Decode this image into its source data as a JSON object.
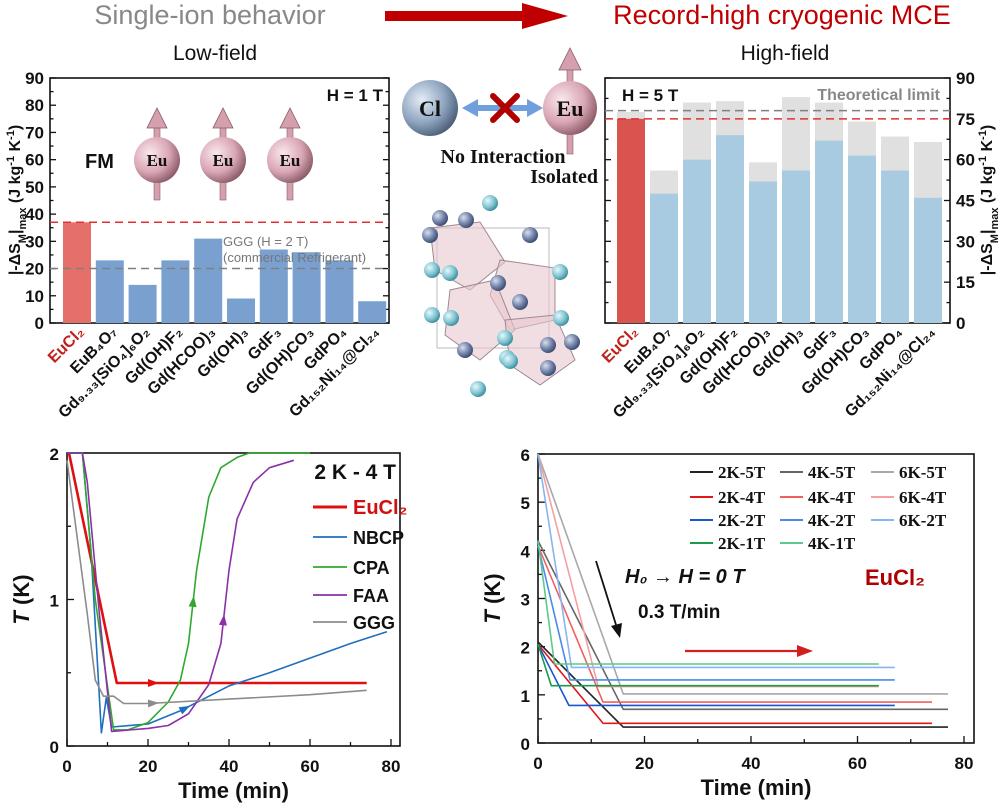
{
  "header": {
    "left_title": "Single-ion behavior",
    "right_title": "Record-high cryogenic MCE",
    "low_field": "Low-field",
    "high_field": "High-field"
  },
  "illustration": {
    "cl_label": "Cl",
    "eu_label": "Eu",
    "no_interaction": "No Interaction",
    "isolated": "Isolated",
    "fm_label": "FM"
  },
  "colors": {
    "eucl2_bar": "#e5706a",
    "eucl2_bar_high": "#d9534f",
    "other_bar_low": "#7aa0d0",
    "other_bar_high": "#a8cbe2",
    "limit_bar": "#e0e0e0",
    "accent_red": "#c00000",
    "gray_text": "#777777"
  },
  "y_title": {
    "pre": "|-ΔS",
    "sub1": "M",
    "mid": "|",
    "sub2": "max",
    "post": " (J kg",
    "sup1": "-1",
    "mid2": " K",
    "sup2": "-1",
    "end": ")"
  },
  "chart_data": [
    {
      "type": "bar",
      "title": "Low-field",
      "annotation": "H = 1 T",
      "categories": [
        "EuCl₂",
        "EuB₄O₇",
        "Gd₉.₃₃[SiO₄]₆O₂",
        "Gd(OH)F₂",
        "Gd(HCOO)₃",
        "Gd(OH)₃",
        "GdF₃",
        "Gd(OH)CO₃",
        "GdPO₄",
        "Gd₁₅₂Ni₁₄@Cl₂₄"
      ],
      "values": [
        37,
        23,
        14,
        23,
        31,
        9,
        27,
        26,
        23,
        8
      ],
      "ylim": [
        0,
        90
      ],
      "yticks": [
        0,
        10,
        20,
        30,
        40,
        50,
        60,
        70,
        80,
        90
      ],
      "reference_lines": [
        {
          "value": 37,
          "color": "#e03030"
        },
        {
          "value": 20,
          "color": "#808080",
          "label1": "GGG (H = 2 T)",
          "label2": "(commercial Refrigerant)"
        }
      ]
    },
    {
      "type": "bar",
      "title": "High-field",
      "annotation": "H = 5 T",
      "categories": [
        "EuCl₂",
        "EuB₄O₇",
        "Gd₉.₃₃[SiO₄]₆O₂",
        "Gd(OH)F₂",
        "Gd(HCOO)₃",
        "Gd(OH)₃",
        "GdF₃",
        "Gd(OH)CO₃",
        "GdPO₄",
        "Gd₁₅₂Ni₁₄@Cl₂₄"
      ],
      "series": [
        {
          "values": [
            75,
            47.5,
            60,
            69,
            52,
            56,
            67,
            61.5,
            56,
            46
          ]
        },
        {
          "name": "Theoretical limit",
          "values": [
            77.5,
            56,
            81,
            81.5,
            59,
            83,
            81,
            74,
            68.5,
            66.5
          ]
        }
      ],
      "ylim": [
        0,
        90
      ],
      "yticks": [
        0,
        15,
        30,
        45,
        60,
        75,
        90
      ],
      "yaxis_side": "right",
      "reference_lines": [
        {
          "value": 75,
          "color": "#e03030"
        },
        {
          "value": 78,
          "color": "#808080",
          "label1": "Theoretical limit"
        }
      ]
    },
    {
      "type": "line",
      "annotation": "2 K - 4 T",
      "xlabel": "Time (min)",
      "ylabel": "T (K)",
      "xlim": [
        0,
        80
      ],
      "ylim": [
        0,
        2
      ],
      "xticks": [
        0,
        20,
        40,
        60,
        80
      ],
      "yticks": [
        0,
        1,
        2
      ],
      "legend": "right",
      "series": [
        {
          "name": "EuCl₂",
          "color": "#e01010",
          "points": [
            [
              0.5,
              2
            ],
            [
              12.3,
              0.43
            ],
            [
              20,
              0.43
            ],
            [
              40,
              0.43
            ],
            [
              60,
              0.43
            ],
            [
              74,
              0.43
            ]
          ],
          "arrow_at": 20
        },
        {
          "name": "NBCP",
          "color": "#1f6fbf",
          "points": [
            [
              0,
              2
            ],
            [
              3.8,
              2
            ],
            [
              6,
              1.3
            ],
            [
              8.5,
              0.09
            ],
            [
              9.7,
              0.33
            ],
            [
              11,
              0.13
            ],
            [
              20,
              0.15
            ],
            [
              28,
              0.24
            ],
            [
              40,
              0.41
            ],
            [
              50,
              0.5
            ],
            [
              60,
              0.6
            ],
            [
              70,
              0.7
            ],
            [
              79,
              0.78
            ]
          ],
          "arrow_at": 28
        },
        {
          "name": "CPA",
          "color": "#30a830",
          "points": [
            [
              0,
              2
            ],
            [
              3.8,
              2
            ],
            [
              7,
              1
            ],
            [
              11.5,
              0.11
            ],
            [
              15,
              0.11
            ],
            [
              20,
              0.16
            ],
            [
              25,
              0.3
            ],
            [
              28,
              0.45
            ],
            [
              30,
              0.7
            ],
            [
              32,
              1.2
            ],
            [
              35,
              1.7
            ],
            [
              38,
              1.9
            ],
            [
              42,
              1.97
            ],
            [
              45,
              2
            ],
            [
              60,
              2
            ]
          ],
          "arrow_at": 31
        },
        {
          "name": "FAA",
          "color": "#8a30a8",
          "points": [
            [
              0,
              2
            ],
            [
              3.8,
              2
            ],
            [
              5,
              1.8
            ],
            [
              8,
              0.9
            ],
            [
              11,
              0.1
            ],
            [
              20,
              0.12
            ],
            [
              25,
              0.14
            ],
            [
              30,
              0.22
            ],
            [
              35,
              0.42
            ],
            [
              38,
              0.7
            ],
            [
              40,
              1.2
            ],
            [
              42,
              1.55
            ],
            [
              46,
              1.8
            ],
            [
              50,
              1.9
            ],
            [
              56,
              1.95
            ]
          ],
          "arrow_at": 38.5
        },
        {
          "name": "GGG",
          "color": "#8c8c8c",
          "points": [
            [
              0,
              1.95
            ],
            [
              5,
              0.9
            ],
            [
              7,
              0.45
            ],
            [
              9,
              0.34
            ],
            [
              11.5,
              0.34
            ],
            [
              14,
              0.29
            ],
            [
              20,
              0.29
            ],
            [
              40,
              0.32
            ],
            [
              60,
              0.35
            ],
            [
              74,
              0.38
            ]
          ],
          "arrow_at": 20
        }
      ]
    },
    {
      "type": "line",
      "annotation1": "H₀ → H = 0 T",
      "annotation2": "0.3 T/min",
      "annotation3": "EuCl₂",
      "xlabel": "Time (min)",
      "ylabel": "T (K)",
      "xlim": [
        0,
        80
      ],
      "ylim": [
        0,
        6
      ],
      "xticks": [
        0,
        20,
        40,
        60,
        80
      ],
      "yticks": [
        0,
        1,
        2,
        3,
        4,
        5,
        6
      ],
      "legend": "top-right",
      "series": [
        {
          "name": "2K-5T",
          "color": "#222222",
          "points": [
            [
              0,
              2.1
            ],
            [
              16,
              0.33
            ],
            [
              77,
              0.33
            ]
          ]
        },
        {
          "name": "4K-5T",
          "color": "#666666",
          "points": [
            [
              0,
              4.2
            ],
            [
              16,
              0.7
            ],
            [
              77,
              0.7
            ]
          ]
        },
        {
          "name": "6K-5T",
          "color": "#a8a8a8",
          "points": [
            [
              0,
              6
            ],
            [
              16,
              1.02
            ],
            [
              77,
              1.02
            ]
          ]
        },
        {
          "name": "2K-4T",
          "color": "#e01818",
          "points": [
            [
              0,
              2.05
            ],
            [
              12.2,
              0.41
            ],
            [
              74,
              0.41
            ]
          ]
        },
        {
          "name": "4K-4T",
          "color": "#f06060",
          "points": [
            [
              0,
              4.1
            ],
            [
              12.2,
              0.85
            ],
            [
              74,
              0.85
            ]
          ]
        },
        {
          "name": "6K-4T",
          "color": "#f4a0a0",
          "points": [
            [
              0,
              6
            ],
            [
              11.3,
              1.17
            ],
            [
              64,
              1.17
            ]
          ]
        },
        {
          "name": "2K-2T",
          "color": "#1a55d0",
          "points": [
            [
              0,
              2.05
            ],
            [
              5.8,
              0.78
            ],
            [
              67,
              0.78
            ]
          ]
        },
        {
          "name": "4K-2T",
          "color": "#4a8be8",
          "points": [
            [
              0,
              4.1
            ],
            [
              6,
              1.31
            ],
            [
              67,
              1.31
            ]
          ]
        },
        {
          "name": "6K-2T",
          "color": "#86b5f0",
          "points": [
            [
              0,
              6
            ],
            [
              6.3,
              1.57
            ],
            [
              67,
              1.57
            ]
          ]
        },
        {
          "name": "2K-1T",
          "color": "#1a9a4a",
          "points": [
            [
              0,
              2.05
            ],
            [
              2.5,
              1.19
            ],
            [
              64,
              1.19
            ]
          ]
        },
        {
          "name": "4K-1T",
          "color": "#5cc98a",
          "points": [
            [
              0,
              4.2
            ],
            [
              3.1,
              1.64
            ],
            [
              64,
              1.64
            ]
          ]
        }
      ]
    }
  ]
}
